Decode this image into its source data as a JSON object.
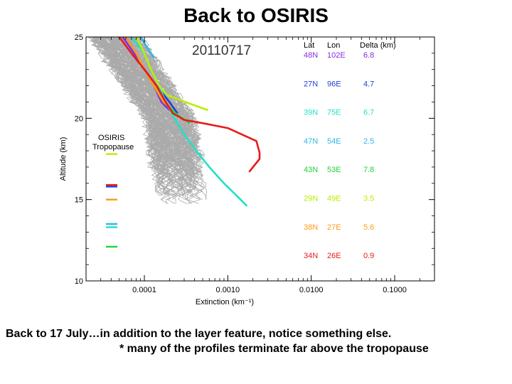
{
  "title": "Back to OSIRIS",
  "caption": {
    "line1": "Back to 17 July…in addition to the layer feature, notice something else.",
    "line2": "* many of the profiles terminate far above the tropopause"
  },
  "chart_data": {
    "type": "line",
    "date_label": "20110717",
    "xlabel": "Extinction (km⁻¹)",
    "ylabel": "Altitude (km)",
    "xscale": "log",
    "xlim": [
      2e-05,
      0.3
    ],
    "ylim": [
      10,
      25
    ],
    "xticks": [
      0.0001,
      0.001,
      0.01,
      0.1
    ],
    "xtick_labels": [
      "0.0001",
      "0.0010",
      "0.0100",
      "0.1000"
    ],
    "yticks": [
      10,
      15,
      20,
      25
    ],
    "ytick_labels": [
      "10",
      "15",
      "20",
      "25"
    ],
    "tropopause_label": [
      "OSIRIS",
      "Tropopause"
    ],
    "table_headers": [
      "Lat",
      "Lon",
      "Delta (km)"
    ],
    "background_profiles": {
      "color": "#aaaaaa",
      "description_count": 150
    },
    "series": [
      {
        "lat": "48N",
        "lon": "102E",
        "delta": "6.8",
        "color": "#8a2be2",
        "tropopause": null,
        "points": [
          [
            5.5e-05,
            25.0
          ],
          [
            7.5e-05,
            24.0
          ],
          [
            0.0001,
            23.0
          ],
          [
            0.00013,
            22.0
          ],
          [
            0.00016,
            21.0
          ],
          [
            0.0002,
            20.5
          ]
        ]
      },
      {
        "lat": "27N",
        "lon": "96E",
        "delta": "4.7",
        "color": "#1f3fd6",
        "tropopause": 15.8,
        "points": [
          [
            6e-05,
            25.0
          ],
          [
            8e-05,
            24.0
          ],
          [
            0.0001,
            23.0
          ],
          [
            0.00014,
            22.0
          ],
          [
            0.0002,
            21.0
          ],
          [
            0.00025,
            20.3
          ]
        ]
      },
      {
        "lat": "39N",
        "lon": "75E",
        "delta": "6.7",
        "color": "#22e0c8",
        "tropopause": 13.3,
        "points": [
          [
            7e-05,
            25.0
          ],
          [
            0.0001,
            24.0
          ],
          [
            0.00012,
            23.0
          ],
          [
            0.00015,
            22.0
          ],
          [
            0.00018,
            21.0
          ],
          [
            0.00023,
            20.0
          ],
          [
            0.0003,
            19.0
          ],
          [
            0.00042,
            18.0
          ],
          [
            0.0006,
            17.0
          ],
          [
            0.0009,
            16.0
          ],
          [
            0.0013,
            15.2
          ],
          [
            0.0017,
            14.6
          ]
        ]
      },
      {
        "lat": "47N",
        "lon": "54E",
        "delta": "2.5",
        "color": "#2bb8e8",
        "tropopause": 13.5,
        "points": [
          [
            9e-05,
            25.0
          ],
          [
            0.00011,
            24.3
          ],
          [
            0.00013,
            23.7
          ]
        ]
      },
      {
        "lat": "43N",
        "lon": "53E",
        "delta": "7.8",
        "color": "#22d23a",
        "tropopause": 12.1,
        "points": [
          [
            8e-05,
            24.0
          ],
          [
            0.0001,
            23.0
          ],
          [
            0.00013,
            22.0
          ],
          [
            0.00017,
            21.0
          ],
          [
            0.00025,
            20.2
          ],
          [
            0.00035,
            19.7
          ]
        ]
      },
      {
        "lat": "29N",
        "lon": "49E",
        "delta": "3.5",
        "color": "#b7f000",
        "tropopause": 17.8,
        "points": [
          [
            8e-05,
            25.0
          ],
          [
            0.0001,
            24.0
          ],
          [
            0.00012,
            23.0
          ],
          [
            0.00015,
            22.0
          ],
          [
            0.00019,
            21.4
          ],
          [
            0.00035,
            20.9
          ],
          [
            0.00058,
            20.5
          ]
        ]
      },
      {
        "lat": "38N",
        "lon": "27E",
        "delta": "5.6",
        "color": "#ff9a1a",
        "tropopause": 15.0,
        "points": [
          [
            6e-05,
            25.0
          ],
          [
            8e-05,
            24.0
          ],
          [
            0.0001,
            23.0
          ],
          [
            0.00013,
            22.0
          ],
          [
            0.00017,
            21.0
          ],
          [
            0.0002,
            20.7
          ]
        ]
      },
      {
        "lat": "34N",
        "lon": "26E",
        "delta": "0.9",
        "color": "#e81a1a",
        "tropopause": 15.9,
        "points": [
          [
            5e-05,
            25.0
          ],
          [
            7e-05,
            24.0
          ],
          [
            0.0001,
            23.0
          ],
          [
            0.00014,
            22.0
          ],
          [
            0.00018,
            21.0
          ],
          [
            0.00022,
            20.3
          ],
          [
            0.0003,
            19.9
          ],
          [
            0.0005,
            19.7
          ],
          [
            0.001,
            19.4
          ],
          [
            0.0022,
            18.6
          ],
          [
            0.0024,
            17.9
          ],
          [
            0.0024,
            17.5
          ],
          [
            0.0018,
            16.7
          ]
        ]
      }
    ]
  }
}
